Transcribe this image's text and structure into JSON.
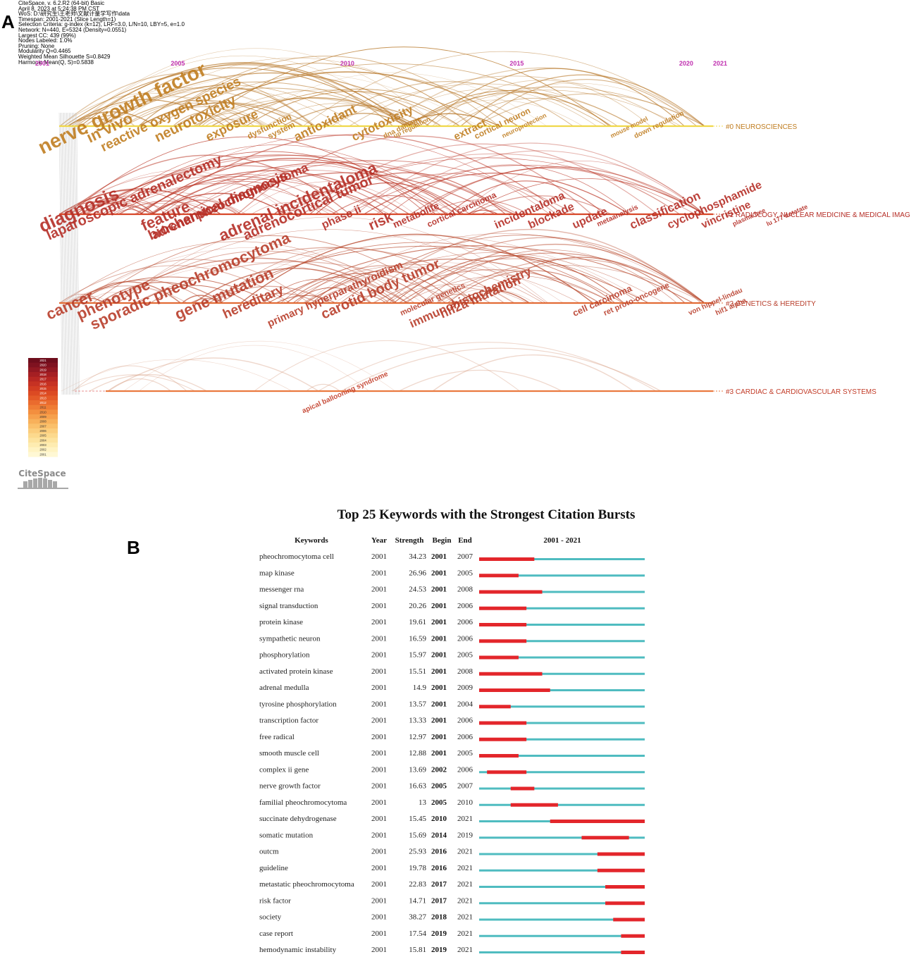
{
  "panel_a": {
    "letter": "A",
    "meta_lines": [
      "CiteSpace, v. 6.2.R2 (64-bit) Basic",
      "April 8, 2023 at 5:24:38 PM CST",
      "WoS: D:\\研究生\\王老师\\文献计量学写作\\data",
      "Timespan: 2001-2021 (Slice Length=1)",
      "Selection Criteria: g-index (k=12), LRF=3.0, L/N=10, LBY=5, e=1.0",
      "Network: N=440, E=5324 (Density=0.0551)",
      "Largest CC: 439 (99%)",
      "Nodes Labeled: 1.0%",
      "Pruning: None",
      "Modularity Q=0.4465",
      "Weighted Mean Silhouette S=0.8429",
      "Harmonic Mean(Q, S)=0.5838"
    ],
    "logo": "CiteSpace",
    "legend_years": [
      "2021",
      "2020",
      "2019",
      "2018",
      "2017",
      "2016",
      "2015",
      "2014",
      "2013",
      "2012",
      "2011",
      "2010",
      "2009",
      "2008",
      "2007",
      "2006",
      "2005",
      "2004",
      "2003",
      "2002",
      "2001"
    ],
    "legend_colors": [
      "#6e0d1c",
      "#7f1220",
      "#921822",
      "#a51f23",
      "#b72723",
      "#c63223",
      "#d23d22",
      "#dc4a23",
      "#e45a28",
      "#ea6b2e",
      "#ef7d35",
      "#f38f3f",
      "#f6a04c",
      "#f8b15b",
      "#fac06b",
      "#fbcd7c",
      "#fcd98d",
      "#fde39e",
      "#feecb0",
      "#fff3c2",
      "#fff8d4"
    ],
    "chart_data": {
      "type": "timeline",
      "title": "",
      "x_axis_years": [
        2001,
        2005,
        2010,
        2015,
        2020,
        2021
      ],
      "xlim": [
        2001,
        2021
      ],
      "clusters": [
        {
          "id": "#0 NEUROSCIENCES",
          "label": "#0 NEUROSCIENCES",
          "color": "#c07d20",
          "line_color": "#f0d84a",
          "keywords": [
            {
              "text": "nerve growth factor",
              "year": 2001,
              "size": 28
            },
            {
              "text": "in vivo",
              "year": 2002.4,
              "size": 22
            },
            {
              "text": "reactive oxygen species",
              "year": 2002.8,
              "size": 19
            },
            {
              "text": "neurotoxicity",
              "year": 2004.4,
              "size": 20
            },
            {
              "text": "exposure",
              "year": 2005.9,
              "size": 18
            },
            {
              "text": "dysfunction",
              "year": 2007.1,
              "size": 12
            },
            {
              "text": "system",
              "year": 2007.7,
              "size": 12
            },
            {
              "text": "antioxidant",
              "year": 2008.5,
              "size": 18
            },
            {
              "text": "cytotoxicity",
              "year": 2010.2,
              "size": 17
            },
            {
              "text": "dna damage",
              "year": 2011.1,
              "size": 10
            },
            {
              "text": "up regulation",
              "year": 2011.4,
              "size": 9
            },
            {
              "text": "extract",
              "year": 2013.2,
              "size": 15
            },
            {
              "text": "cortical neuron",
              "year": 2013.8,
              "size": 12
            },
            {
              "text": "neuroprotection",
              "year": 2014.6,
              "size": 9
            },
            {
              "text": "mouse model",
              "year": 2017.8,
              "size": 9
            },
            {
              "text": "down regulation",
              "year": 2018.5,
              "size": 10
            }
          ]
        },
        {
          "id": "#1 RADIOLOGY, NUCLEAR MEDICINE & MEDICAL IMAGING",
          "label": "#1 RADIOLOGY, NUCLEAR MEDICINE & MEDICAL IMAG",
          "color": "#b52d26",
          "line_color": "#d8482a",
          "keywords": [
            {
              "text": "diagnosis",
              "year": 2001,
              "size": 26
            },
            {
              "text": "laparoscopic adrenalectomy",
              "year": 2001.2,
              "size": 20
            },
            {
              "text": "feature",
              "year": 2004,
              "size": 22
            },
            {
              "text": "biochemical diagnosis",
              "year": 2004.2,
              "size": 20
            },
            {
              "text": "adrenal pheochromocytoma",
              "year": 2004.3,
              "size": 18
            },
            {
              "text": "adrenal incidentaloma",
              "year": 2006.3,
              "size": 23
            },
            {
              "text": "adrenocortical tumor",
              "year": 2007,
              "size": 20
            },
            {
              "text": "phase ii",
              "year": 2009.3,
              "size": 16
            },
            {
              "text": "risk",
              "year": 2010.7,
              "size": 20
            },
            {
              "text": "metabolite",
              "year": 2011.4,
              "size": 14
            },
            {
              "text": "cortical carcinoma",
              "year": 2012.4,
              "size": 12
            },
            {
              "text": "incidentaloma",
              "year": 2014.4,
              "size": 16
            },
            {
              "text": "blockade",
              "year": 2015.4,
              "size": 16
            },
            {
              "text": "update",
              "year": 2016.7,
              "size": 16
            },
            {
              "text": "metaanalysis",
              "year": 2017.4,
              "size": 10
            },
            {
              "text": "classification",
              "year": 2018.4,
              "size": 17
            },
            {
              "text": "cyclophosphamide",
              "year": 2019.5,
              "size": 16
            },
            {
              "text": "vincristine",
              "year": 2020.5,
              "size": 15
            },
            {
              "text": "plasma free",
              "year": 2021.4,
              "size": 9
            },
            {
              "text": "lu 177 dotatate",
              "year": 2022.4,
              "size": 9
            }
          ]
        },
        {
          "id": "#2 GENETICS & HEREDITY",
          "label": "#2 GENETICS & HEREDITY",
          "color": "#b83d2a",
          "line_color": "#e26b35",
          "keywords": [
            {
              "text": "cancer",
              "year": 2001.2,
              "size": 22
            },
            {
              "text": "phenotype",
              "year": 2002.1,
              "size": 22
            },
            {
              "text": "sporadic pheochromocytoma",
              "year": 2002.5,
              "size": 22
            },
            {
              "text": "gene mutation",
              "year": 2005,
              "size": 22
            },
            {
              "text": "hereditary",
              "year": 2006.4,
              "size": 19
            },
            {
              "text": "primary hyperparathyroidism",
              "year": 2007.7,
              "size": 15
            },
            {
              "text": "carotid body tumor",
              "year": 2009.3,
              "size": 20
            },
            {
              "text": "molecular genetics",
              "year": 2011.6,
              "size": 11
            },
            {
              "text": "immunohistochemistry",
              "year": 2011.9,
              "size": 17
            },
            {
              "text": "hif2a mutation",
              "year": 2012.8,
              "size": 18
            },
            {
              "text": "cell carcinoma",
              "year": 2016.7,
              "size": 13
            },
            {
              "text": "ret proto-oncogene",
              "year": 2017.6,
              "size": 11
            },
            {
              "text": "von hippel-lindau",
              "year": 2020.1,
              "size": 10
            },
            {
              "text": "hif1 alpha",
              "year": 2020.9,
              "size": 10
            }
          ]
        },
        {
          "id": "#3 CARDIAC & CARDIOVASCULAR SYSTEMS",
          "label": "#3 CARDIAC & CARDIOVASCULAR SYSTEMS",
          "color": "#c23c28",
          "line_color": "#ea7a40",
          "keywords": [
            {
              "text": "apical ballooning syndrome",
              "year": 2008.7,
              "size": 10
            }
          ]
        }
      ]
    }
  },
  "panel_b": {
    "letter": "B",
    "chart_data": {
      "type": "table",
      "title": "Top 25 Keywords with the Strongest Citation Bursts",
      "columns": [
        "Keywords",
        "Year",
        "Strength",
        "Begin",
        "End",
        "2001 - 2021"
      ],
      "range": [
        2001,
        2021
      ],
      "rows": [
        {
          "keyword": "pheochromocytoma cell",
          "year": "2001",
          "strength": "34.23",
          "begin": "2001",
          "end": "2007"
        },
        {
          "keyword": "map kinase",
          "year": "2001",
          "strength": "26.96",
          "begin": "2001",
          "end": "2005"
        },
        {
          "keyword": "messenger rna",
          "year": "2001",
          "strength": "24.53",
          "begin": "2001",
          "end": "2008"
        },
        {
          "keyword": "signal transduction",
          "year": "2001",
          "strength": "20.26",
          "begin": "2001",
          "end": "2006"
        },
        {
          "keyword": "protein kinase",
          "year": "2001",
          "strength": "19.61",
          "begin": "2001",
          "end": "2006"
        },
        {
          "keyword": "sympathetic neuron",
          "year": "2001",
          "strength": "16.59",
          "begin": "2001",
          "end": "2006"
        },
        {
          "keyword": "phosphorylation",
          "year": "2001",
          "strength": "15.97",
          "begin": "2001",
          "end": "2005"
        },
        {
          "keyword": "activated protein kinase",
          "year": "2001",
          "strength": "15.51",
          "begin": "2001",
          "end": "2008"
        },
        {
          "keyword": "adrenal medulla",
          "year": "2001",
          "strength": "14.9",
          "begin": "2001",
          "end": "2009"
        },
        {
          "keyword": "tyrosine phosphorylation",
          "year": "2001",
          "strength": "13.57",
          "begin": "2001",
          "end": "2004"
        },
        {
          "keyword": "transcription factor",
          "year": "2001",
          "strength": "13.33",
          "begin": "2001",
          "end": "2006"
        },
        {
          "keyword": "free radical",
          "year": "2001",
          "strength": "12.97",
          "begin": "2001",
          "end": "2006"
        },
        {
          "keyword": "smooth muscle cell",
          "year": "2001",
          "strength": "12.88",
          "begin": "2001",
          "end": "2005"
        },
        {
          "keyword": "complex ii gene",
          "year": "2001",
          "strength": "13.69",
          "begin": "2002",
          "end": "2006"
        },
        {
          "keyword": "nerve growth factor",
          "year": "2001",
          "strength": "16.63",
          "begin": "2005",
          "end": "2007"
        },
        {
          "keyword": "familial pheochromocytoma",
          "year": "2001",
          "strength": "13",
          "begin": "2005",
          "end": "2010"
        },
        {
          "keyword": "succinate dehydrogenase",
          "year": "2001",
          "strength": "15.45",
          "begin": "2010",
          "end": "2021"
        },
        {
          "keyword": "somatic mutation",
          "year": "2001",
          "strength": "15.69",
          "begin": "2014",
          "end": "2019"
        },
        {
          "keyword": "outcm",
          "year": "2001",
          "strength": "25.93",
          "begin": "2016",
          "end": "2021"
        },
        {
          "keyword": "guideline",
          "year": "2001",
          "strength": "19.78",
          "begin": "2016",
          "end": "2021"
        },
        {
          "keyword": "metastatic pheochromocytoma",
          "year": "2001",
          "strength": "22.83",
          "begin": "2017",
          "end": "2021"
        },
        {
          "keyword": "risk factor",
          "year": "2001",
          "strength": "14.71",
          "begin": "2017",
          "end": "2021"
        },
        {
          "keyword": "society",
          "year": "2001",
          "strength": "38.27",
          "begin": "2018",
          "end": "2021"
        },
        {
          "keyword": "case report",
          "year": "2001",
          "strength": "17.54",
          "begin": "2019",
          "end": "2021"
        },
        {
          "keyword": "hemodynamic instability",
          "year": "2001",
          "strength": "15.81",
          "begin": "2019",
          "end": "2021"
        }
      ],
      "burst_color": "#e3262b",
      "base_color": "#4fbcc0"
    }
  }
}
